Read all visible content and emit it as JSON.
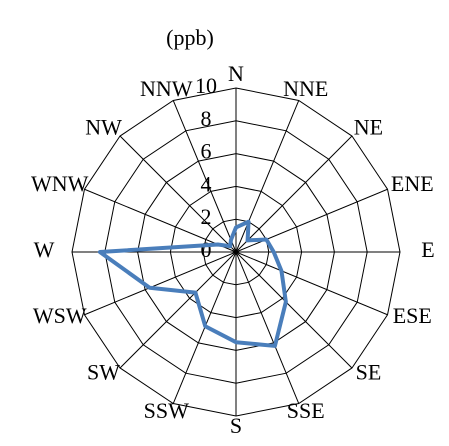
{
  "chart_data": {
    "type": "radar",
    "unit_label": "(ppb)",
    "categories": [
      "N",
      "NNE",
      "NE",
      "ENE",
      "E",
      "ESE",
      "SE",
      "SSE",
      "S",
      "SSW",
      "SW",
      "WSW",
      "W",
      "WNW",
      "NW",
      "NNW"
    ],
    "series": [
      {
        "color": "#4a7ebb",
        "values": [
          1.5,
          2.0,
          1.0,
          2.0,
          2.3,
          3.0,
          4.3,
          6.2,
          5.5,
          4.9,
          3.5,
          5.7,
          8.3,
          1.2,
          0.5,
          0.8
        ]
      }
    ],
    "ylim": [
      0,
      10
    ],
    "yticks": [
      0,
      2,
      4,
      6,
      8,
      10
    ],
    "grid": true
  }
}
